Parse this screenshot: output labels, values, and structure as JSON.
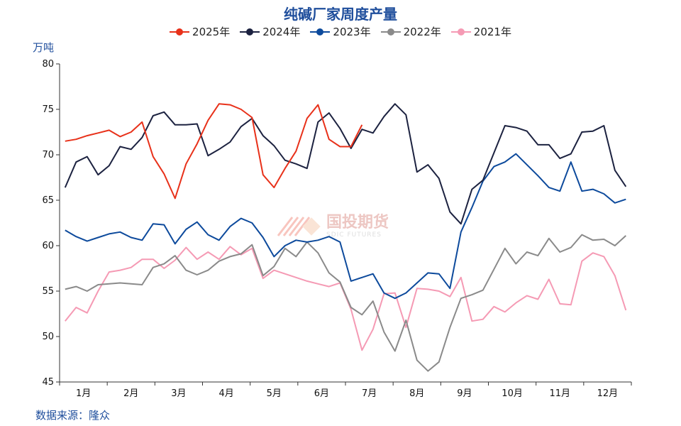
{
  "chart_data": {
    "type": "line",
    "title": "纯碱厂家周度产量",
    "ylabel": "万吨",
    "ylim": [
      45,
      80
    ],
    "yticks": [
      45,
      50,
      55,
      60,
      65,
      70,
      75,
      80
    ],
    "x_count": 52,
    "months": [
      "1月",
      "2月",
      "3月",
      "4月",
      "5月",
      "6月",
      "7月",
      "8月",
      "9月",
      "10月",
      "11月",
      "12月"
    ],
    "source": "数据来源：隆众",
    "watermark": {
      "cn": "国投期货",
      "en": "SDIC FUTURES"
    },
    "series": [
      {
        "name": "2025年",
        "color": "#e8311a",
        "values": [
          71.5,
          71.7,
          72.1,
          72.4,
          72.7,
          72.0,
          72.5,
          73.6,
          69.8,
          67.9,
          65.2,
          69.0,
          71.2,
          73.8,
          75.6,
          75.5,
          75.0,
          74.1,
          67.8,
          66.4,
          68.5,
          70.4,
          74.0,
          75.5,
          71.7,
          70.9,
          70.9,
          73.3
        ]
      },
      {
        "name": "2024年",
        "color": "#1c2240",
        "values": [
          66.4,
          69.2,
          69.8,
          67.8,
          68.8,
          70.9,
          70.6,
          71.9,
          74.3,
          74.7,
          73.3,
          73.3,
          73.4,
          69.9,
          70.6,
          71.4,
          73.1,
          74.0,
          72.1,
          71.0,
          69.4,
          69.0,
          68.5,
          73.6,
          74.6,
          72.9,
          70.7,
          72.8,
          72.4,
          74.2,
          75.6,
          74.4,
          68.1,
          68.9,
          67.4,
          63.7,
          62.4,
          66.2,
          67.2,
          70.2,
          73.2,
          73.0,
          72.6,
          71.1,
          71.1,
          69.6,
          70.1,
          72.5,
          72.6,
          73.2,
          68.3,
          66.5
        ]
      },
      {
        "name": "2023年",
        "color": "#0d4a9c",
        "values": [
          61.7,
          61.0,
          60.5,
          60.9,
          61.3,
          61.5,
          60.9,
          60.6,
          62.4,
          62.3,
          60.2,
          61.8,
          62.6,
          61.2,
          60.6,
          62.1,
          63.0,
          62.5,
          60.9,
          58.8,
          60.0,
          60.6,
          60.4,
          60.6,
          61.0,
          60.4,
          56.1,
          56.5,
          56.9,
          54.8,
          54.2,
          54.8,
          55.9,
          57.0,
          56.9,
          55.3,
          61.5,
          64.2,
          67.1,
          68.7,
          69.2,
          70.1,
          68.9,
          67.7,
          66.4,
          66.0,
          69.2,
          66.0,
          66.2,
          65.7,
          64.7,
          65.1
        ]
      },
      {
        "name": "2022年",
        "color": "#8a8a8a",
        "values": [
          55.2,
          55.5,
          55.0,
          55.7,
          55.8,
          55.9,
          55.8,
          55.7,
          57.6,
          58.0,
          58.9,
          57.3,
          56.8,
          57.3,
          58.3,
          58.8,
          59.1,
          60.1,
          56.7,
          57.7,
          59.7,
          58.8,
          60.4,
          59.2,
          57.0,
          56.0,
          53.2,
          52.4,
          53.9,
          50.5,
          48.4,
          51.8,
          47.4,
          46.2,
          47.2,
          51.0,
          54.2,
          54.6,
          55.1,
          57.4,
          59.7,
          58.0,
          59.3,
          58.9,
          60.8,
          59.3,
          59.8,
          61.2,
          60.6,
          60.7,
          60.0,
          61.1
        ]
      },
      {
        "name": "2021年",
        "color": "#f59ab4",
        "values": [
          51.7,
          53.2,
          52.6,
          55.0,
          57.1,
          57.3,
          57.6,
          58.5,
          58.5,
          57.5,
          58.4,
          59.8,
          58.5,
          59.3,
          58.5,
          59.9,
          59.0,
          59.7,
          56.4,
          57.3,
          56.9,
          56.5,
          56.1,
          55.8,
          55.5,
          55.9,
          53.0,
          48.5,
          50.8,
          54.7,
          54.8,
          51.0,
          55.3,
          55.2,
          55.0,
          54.4,
          56.5,
          51.7,
          51.9,
          53.3,
          52.7,
          53.7,
          54.5,
          54.1,
          56.3,
          53.6,
          53.5,
          58.3,
          59.2,
          58.8,
          56.7,
          52.9
        ]
      }
    ]
  }
}
